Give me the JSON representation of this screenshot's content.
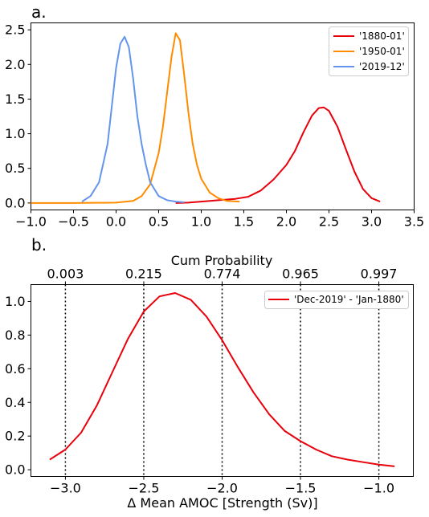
{
  "chart_data": [
    {
      "panel_label": "a.",
      "type": "line",
      "xlim": [
        -1.0,
        3.5
      ],
      "ylim": [
        -0.1,
        2.6
      ],
      "x_ticks": [
        "−1.0",
        "−0.5",
        "0.0",
        "0.5",
        "1.0",
        "1.5",
        "2.0",
        "2.5",
        "3.0",
        "3.5"
      ],
      "x_tick_values": [
        -1.0,
        -0.5,
        0.0,
        0.5,
        1.0,
        1.5,
        2.0,
        2.5,
        3.0,
        3.5
      ],
      "y_ticks": [
        "0.0",
        "0.5",
        "1.0",
        "1.5",
        "2.0",
        "2.5"
      ],
      "y_tick_values": [
        0.0,
        0.5,
        1.0,
        1.5,
        2.0,
        2.5
      ],
      "grid": false,
      "legend_position": "top-right",
      "series": [
        {
          "name": "'1880-01'",
          "color": "#e8000b",
          "x": [
            0.7,
            0.85,
            1.0,
            1.2,
            1.4,
            1.55,
            1.7,
            1.85,
            2.0,
            2.1,
            2.2,
            2.3,
            2.38,
            2.44,
            2.5,
            2.6,
            2.7,
            2.8,
            2.9,
            3.0,
            3.1
          ],
          "y": [
            0.0,
            0.005,
            0.02,
            0.04,
            0.06,
            0.09,
            0.18,
            0.34,
            0.55,
            0.75,
            1.02,
            1.26,
            1.37,
            1.38,
            1.33,
            1.1,
            0.77,
            0.45,
            0.2,
            0.07,
            0.02
          ]
        },
        {
          "name": "'1950-01'",
          "color": "#ff8c00",
          "x": [
            -1.0,
            -0.5,
            0.0,
            0.2,
            0.3,
            0.4,
            0.5,
            0.55,
            0.6,
            0.65,
            0.7,
            0.75,
            0.8,
            0.85,
            0.9,
            0.95,
            1.0,
            1.1,
            1.2,
            1.3,
            1.45
          ],
          "y": [
            0.0,
            0.0,
            0.005,
            0.03,
            0.1,
            0.27,
            0.72,
            1.1,
            1.6,
            2.1,
            2.45,
            2.35,
            1.85,
            1.3,
            0.85,
            0.55,
            0.35,
            0.15,
            0.07,
            0.03,
            0.02
          ]
        },
        {
          "name": "'2019-12'",
          "color": "#6495ed",
          "x": [
            -0.4,
            -0.3,
            -0.2,
            -0.1,
            -0.05,
            0.0,
            0.05,
            0.1,
            0.15,
            0.2,
            0.25,
            0.3,
            0.35,
            0.4,
            0.5,
            0.6,
            0.7,
            0.8
          ],
          "y": [
            0.02,
            0.1,
            0.3,
            0.85,
            1.4,
            1.95,
            2.3,
            2.4,
            2.25,
            1.8,
            1.25,
            0.85,
            0.55,
            0.3,
            0.1,
            0.04,
            0.02,
            0.01
          ]
        }
      ]
    },
    {
      "panel_label": "b.",
      "type": "line",
      "xlabel": "Δ Mean AMOC [Strength (Sv)]",
      "top_axis_title": "Cum Probability",
      "xlim": [
        -3.22,
        -0.78
      ],
      "ylim": [
        -0.04,
        1.1
      ],
      "x_ticks": [
        "−3.0",
        "−2.5",
        "−2.0",
        "−1.5",
        "−1.0"
      ],
      "x_tick_values": [
        -3.0,
        -2.5,
        -2.0,
        -1.5,
        -1.0
      ],
      "y_ticks": [
        "0.0",
        "0.2",
        "0.4",
        "0.6",
        "0.8",
        "1.0"
      ],
      "y_tick_values": [
        0.0,
        0.2,
        0.4,
        0.6,
        0.8,
        1.0
      ],
      "top_ticks": [
        "0.003",
        "0.215",
        "0.774",
        "0.965",
        "0.997"
      ],
      "top_tick_values": [
        -3.0,
        -2.5,
        -2.0,
        -1.5,
        -1.0
      ],
      "grid": false,
      "legend_position": "top-right",
      "series": [
        {
          "name": "'Dec-2019' - 'Jan-1880'",
          "color": "#e8000b",
          "x": [
            -3.1,
            -3.0,
            -2.9,
            -2.8,
            -2.7,
            -2.6,
            -2.5,
            -2.4,
            -2.3,
            -2.2,
            -2.1,
            -2.0,
            -1.9,
            -1.8,
            -1.7,
            -1.6,
            -1.5,
            -1.4,
            -1.3,
            -1.2,
            -1.1,
            -1.0,
            -0.9
          ],
          "y": [
            0.06,
            0.12,
            0.22,
            0.38,
            0.58,
            0.78,
            0.94,
            1.03,
            1.05,
            1.01,
            0.91,
            0.77,
            0.61,
            0.46,
            0.33,
            0.23,
            0.17,
            0.12,
            0.08,
            0.06,
            0.045,
            0.03,
            0.02
          ]
        }
      ]
    }
  ]
}
